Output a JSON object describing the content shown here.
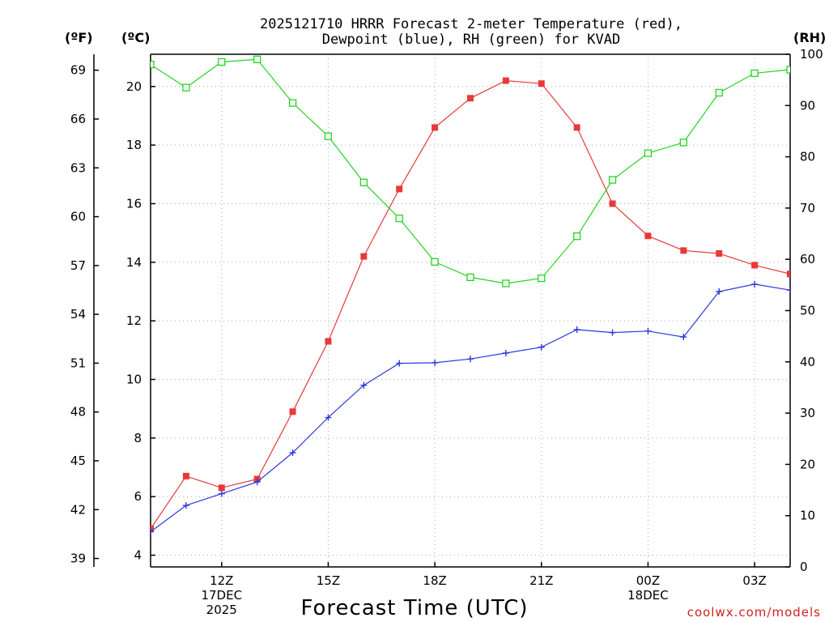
{
  "chart_data": {
    "type": "line",
    "title_line1": "2025121710 HRRR Forecast 2-meter Temperature (red),",
    "title_line2": "Dewpoint (blue), RH (green) for KVAD",
    "unit_left_f": "(ºF)",
    "unit_left_c": "(ºC)",
    "unit_right": "(RH)",
    "xlabel": "Forecast Time (UTC)",
    "credit": "coolwx.com/models",
    "hours": [
      10,
      11,
      12,
      13,
      14,
      15,
      16,
      17,
      18,
      19,
      20,
      21,
      22,
      23,
      24,
      25,
      26,
      27,
      28
    ],
    "xlim": [
      10,
      28
    ],
    "ylim_c": [
      3.6,
      21.1
    ],
    "ylim_rh": [
      0,
      100
    ],
    "x_ticks": [
      {
        "hour": 12,
        "lines": [
          "12Z",
          "17DEC",
          "2025"
        ]
      },
      {
        "hour": 15,
        "lines": [
          "15Z"
        ]
      },
      {
        "hour": 18,
        "lines": [
          "18Z"
        ]
      },
      {
        "hour": 21,
        "lines": [
          "21Z"
        ]
      },
      {
        "hour": 24,
        "lines": [
          "00Z",
          "18DEC"
        ]
      },
      {
        "hour": 27,
        "lines": [
          "03Z"
        ]
      }
    ],
    "y_ticks_c": [
      "4",
      "6",
      "8",
      "10",
      "12",
      "14",
      "16",
      "18",
      "20"
    ],
    "y_ticks_f": [
      "39",
      "42",
      "45",
      "48",
      "51",
      "54",
      "57",
      "60",
      "63",
      "66",
      "69"
    ],
    "y_ticks_rh": [
      "0",
      "10",
      "20",
      "30",
      "40",
      "50",
      "60",
      "70",
      "80",
      "90",
      "100"
    ],
    "series": [
      {
        "name": "Temperature",
        "units": "C",
        "color": "#e83838",
        "marker": "square-filled",
        "values": [
          4.9,
          6.7,
          6.3,
          6.6,
          8.9,
          11.3,
          14.2,
          16.5,
          18.6,
          19.6,
          20.2,
          20.1,
          18.6,
          16.0,
          14.9,
          14.4,
          14.3,
          13.9,
          13.6
        ]
      },
      {
        "name": "Dewpoint",
        "units": "C",
        "color": "#2a38e0",
        "marker": "plus",
        "values": [
          4.8,
          5.7,
          6.1,
          6.5,
          7.5,
          8.7,
          9.8,
          10.55,
          10.57,
          10.7,
          10.9,
          11.1,
          11.7,
          11.6,
          11.65,
          11.45,
          13.0,
          13.25,
          13.05
        ]
      },
      {
        "name": "RH",
        "units": "%",
        "color": "#22d422",
        "marker": "square-open",
        "values": [
          98,
          93.5,
          98.5,
          99,
          90.5,
          84,
          75,
          68,
          59.5,
          56.5,
          55.3,
          56.3,
          64.5,
          75.5,
          80.7,
          82.8,
          92.5,
          96.3,
          97
        ]
      }
    ]
  }
}
